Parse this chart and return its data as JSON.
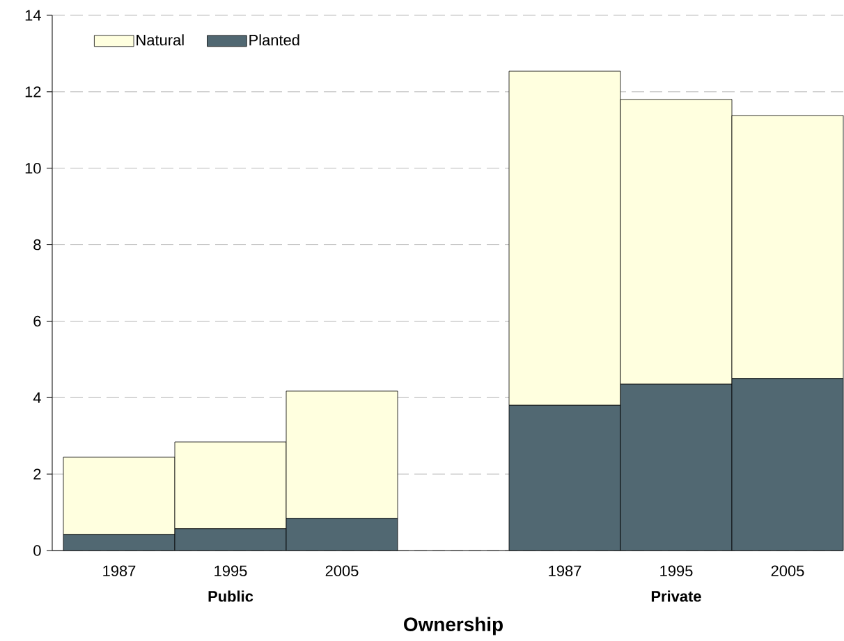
{
  "chart_data": {
    "type": "bar",
    "stacked": true,
    "xlabel": "Ownership",
    "categories": [
      "1987",
      "1995",
      "2005",
      null,
      "1987",
      "1995",
      "2005"
    ],
    "series": [
      {
        "name": "Planted",
        "color": "#516872",
        "values": [
          0.42,
          0.57,
          0.84,
          null,
          3.8,
          4.35,
          4.5
        ]
      },
      {
        "name": "Natural",
        "color": "#ffffdf",
        "values": [
          2.02,
          2.27,
          3.33,
          null,
          8.74,
          7.45,
          6.88
        ]
      }
    ],
    "annotations": [
      "Public",
      "Private"
    ],
    "ylim": [
      0,
      14
    ],
    "yticks": [
      0,
      2,
      4,
      6,
      8,
      10,
      12,
      14
    ],
    "grid": "y",
    "legend": "top left"
  }
}
